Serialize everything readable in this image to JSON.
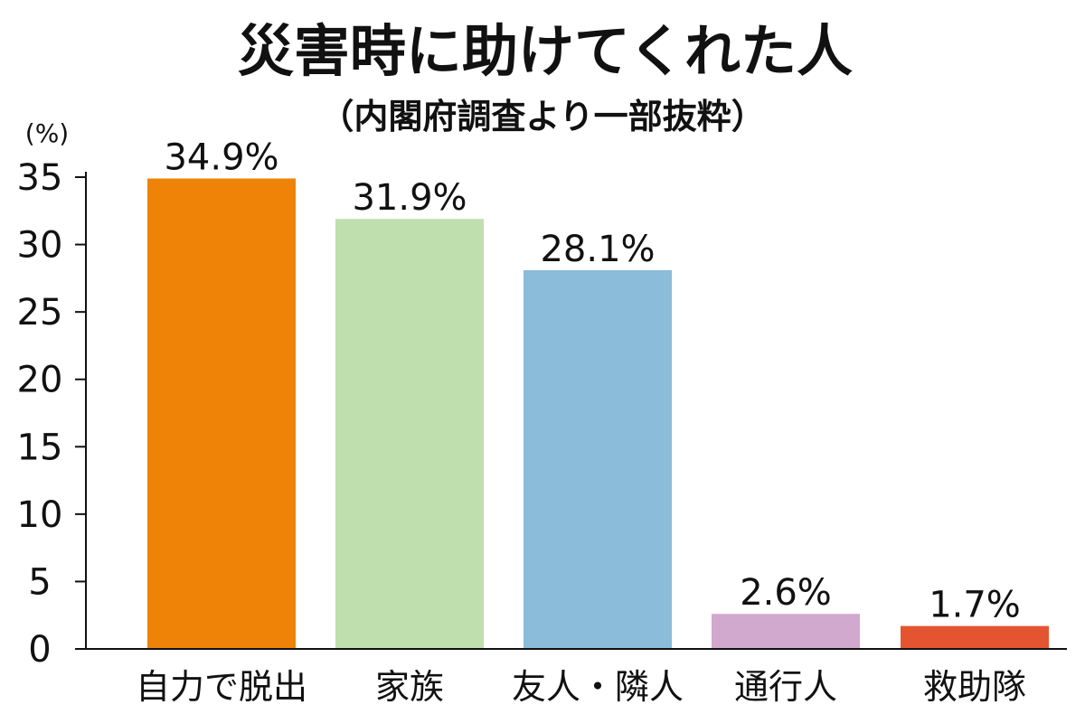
{
  "chart_data": {
    "type": "bar",
    "title": "災害時に助けてくれた人",
    "subtitle": "（内閣府調査より一部抜粋）",
    "ylabel": "(%)",
    "ylim": [
      0,
      35
    ],
    "yticks": [
      0,
      5,
      10,
      15,
      20,
      25,
      30,
      35
    ],
    "grid": false,
    "categories": [
      "自力で脱出",
      "家族",
      "友人・隣人",
      "通行人",
      "救助隊"
    ],
    "values": [
      34.9,
      31.9,
      28.1,
      2.6,
      1.7
    ],
    "value_labels": [
      "34.9%",
      "31.9%",
      "28.1%",
      "2.6%",
      "1.7%"
    ],
    "colors": [
      "#EE8307",
      "#C0DFAE",
      "#8BBCD9",
      "#D1A9CE",
      "#E55430"
    ]
  }
}
